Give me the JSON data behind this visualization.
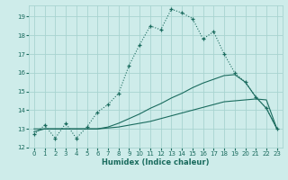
{
  "xlabel": "Humidex (Indice chaleur)",
  "xlim": [
    -0.5,
    23.5
  ],
  "ylim": [
    12,
    19.6
  ],
  "yticks": [
    12,
    13,
    14,
    15,
    16,
    17,
    18,
    19
  ],
  "xticks": [
    0,
    1,
    2,
    3,
    4,
    5,
    6,
    7,
    8,
    9,
    10,
    11,
    12,
    13,
    14,
    15,
    16,
    17,
    18,
    19,
    20,
    21,
    22,
    23
  ],
  "bg_color": "#ceecea",
  "grid_color": "#a8d4d0",
  "line_color": "#1a6b5e",
  "line1_x": [
    0,
    1,
    2,
    3,
    4,
    5,
    6,
    7,
    8,
    9,
    10,
    11,
    12,
    13,
    14,
    15,
    16,
    17,
    18,
    19,
    20,
    21,
    22,
    23
  ],
  "line1_y": [
    12.7,
    13.2,
    12.5,
    13.3,
    12.5,
    13.1,
    13.9,
    14.3,
    14.9,
    16.4,
    17.5,
    18.5,
    18.3,
    19.4,
    19.2,
    18.9,
    17.8,
    18.2,
    17.0,
    16.0,
    15.5,
    14.7,
    14.1,
    13.0
  ],
  "line2_x": [
    0,
    1,
    2,
    3,
    4,
    5,
    6,
    7,
    8,
    9,
    10,
    11,
    12,
    13,
    14,
    15,
    16,
    17,
    18,
    19,
    20,
    21,
    22,
    23
  ],
  "line2_y": [
    13.0,
    13.0,
    13.0,
    13.0,
    13.0,
    13.0,
    13.0,
    13.05,
    13.1,
    13.2,
    13.3,
    13.4,
    13.55,
    13.7,
    13.85,
    14.0,
    14.15,
    14.3,
    14.45,
    14.5,
    14.55,
    14.6,
    14.55,
    13.0
  ],
  "line3_x": [
    0,
    1,
    2,
    3,
    4,
    5,
    6,
    7,
    8,
    9,
    10,
    11,
    12,
    13,
    14,
    15,
    16,
    17,
    18,
    19,
    20,
    21,
    22,
    23
  ],
  "line3_y": [
    12.85,
    13.0,
    13.0,
    13.0,
    13.0,
    13.0,
    13.0,
    13.1,
    13.3,
    13.55,
    13.8,
    14.1,
    14.35,
    14.65,
    14.9,
    15.2,
    15.45,
    15.65,
    15.85,
    15.9,
    15.5,
    14.7,
    14.1,
    13.0
  ]
}
